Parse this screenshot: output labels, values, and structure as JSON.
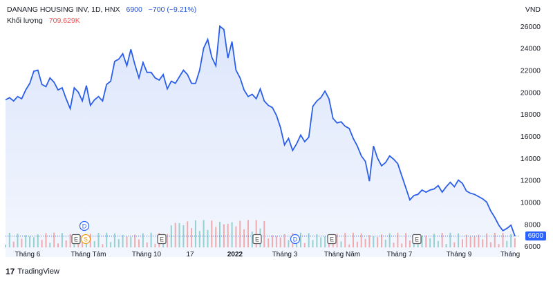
{
  "legend": {
    "symbol_line": "DANANG HOUSING INV, 1D, HNX",
    "last": "6900",
    "change": "−700 (−9.21%)",
    "volume_label": "Khối lượng",
    "volume_value": "709.629K"
  },
  "unit_label": "VND",
  "brand": {
    "logo": "17",
    "name": "TradingView"
  },
  "last_price_tag": "6900",
  "colors": {
    "line": "#2a5ee8",
    "fill": "#dbe5fb",
    "vol_up": "#26a69a",
    "vol_down": "#ef5350",
    "tag_bg": "#2962ff"
  },
  "chart_data": {
    "type": "area",
    "title": "DANANG HOUSING INV, 1D, HNX",
    "ylabel": "VND",
    "ylim": [
      5000,
      27000
    ],
    "y_ticks": [
      6000,
      8000,
      10000,
      12000,
      14000,
      16000,
      18000,
      20000,
      22000,
      24000,
      26000
    ],
    "x_labels": [
      "Tháng 6",
      "Tháng Tám",
      "Tháng 10",
      "17",
      "2022",
      "Tháng 3",
      "Tháng Năm",
      "Tháng 7",
      "Tháng 9",
      "Tháng"
    ],
    "series": [
      {
        "values": [
          19300,
          19500,
          19200,
          19600,
          19400,
          20200,
          20800,
          21900,
          22000,
          20700,
          20500,
          21300,
          20900,
          20200,
          20400,
          19400,
          18500,
          20400,
          20000,
          19200,
          20600,
          18800,
          19300,
          19600,
          19200,
          20700,
          21000,
          22800,
          23000,
          23500,
          22400,
          23900,
          22500,
          21300,
          22700,
          21800,
          21800,
          21300,
          21100,
          21600,
          20300,
          21000,
          20800,
          21400,
          22000,
          21600,
          20800,
          20800,
          22000,
          24000,
          24800,
          23200,
          22400,
          26000,
          25700,
          23100,
          24600,
          22000,
          21300,
          20200,
          19600,
          19800,
          19400,
          20300,
          19200,
          18800,
          18600,
          17900,
          16800,
          15200,
          15800,
          14700,
          15300,
          16100,
          15500,
          15900,
          18700,
          19200,
          19500,
          20100,
          19400,
          17600,
          17200,
          17300,
          16900,
          16700,
          15800,
          15100,
          14200,
          13700,
          11900,
          15100,
          14000,
          13300,
          13600,
          14200,
          13900,
          13500,
          12400,
          11300,
          10200,
          10600,
          10700,
          11100,
          10900,
          11100,
          11200,
          11500,
          10900,
          11400,
          11800,
          11400,
          12000,
          11700,
          11000,
          10800,
          10700,
          10500,
          10300,
          10000,
          9200,
          8600,
          7900,
          7400,
          7600,
          7900,
          6900
        ]
      }
    ],
    "volume_label": "Khối lượng",
    "last_value": 6900,
    "last_change": -700,
    "last_change_pct": -9.21,
    "event_markers": [
      "D",
      "E",
      "S",
      "E",
      "E",
      "D",
      "E",
      "E",
      "E"
    ]
  }
}
